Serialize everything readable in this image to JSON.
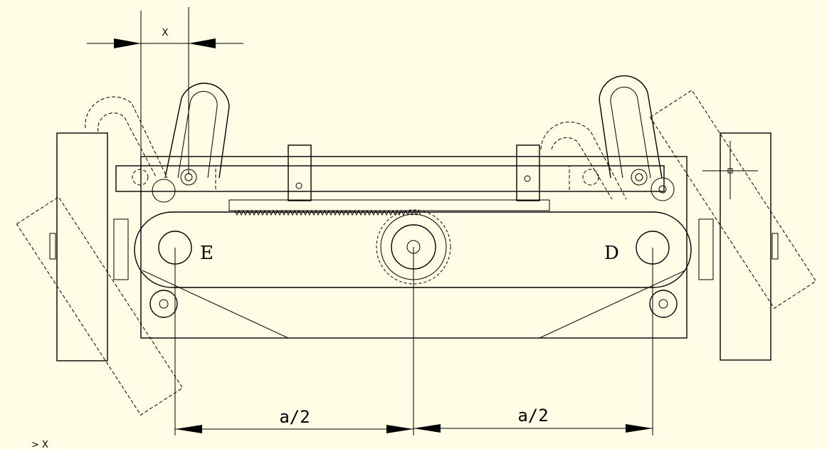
{
  "diagram": {
    "background": "#fffde6",
    "line_color": "#000000",
    "labels": {
      "x_dim": "X",
      "point_e": "E",
      "point_d": "D",
      "half_a_left": "a/2",
      "half_a_right": "a/2",
      "corner_mark": "> X"
    }
  }
}
